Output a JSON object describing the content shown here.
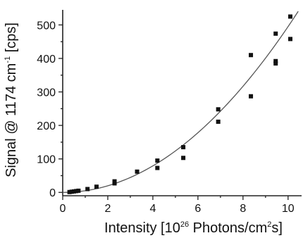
{
  "chart_data": {
    "type": "scatter",
    "title": "",
    "xlabel": {
      "prefix": "Intensity [10",
      "sup1": "26",
      "middle": " Photons/cm",
      "sup2": "2",
      "suffix": "s]"
    },
    "ylabel": {
      "prefix": "Signal @ 1174 cm",
      "sup": "-1",
      "suffix": " [cps]"
    },
    "xlim": [
      0,
      10.6
    ],
    "ylim": [
      -10,
      545
    ],
    "xticks": [
      0,
      2,
      4,
      6,
      8,
      10
    ],
    "yticks": [
      0,
      100,
      200,
      300,
      400,
      500
    ],
    "grid": false,
    "legend": "none",
    "series": [
      {
        "points": [
          [
            0.3,
            1
          ],
          [
            0.4,
            2
          ],
          [
            0.5,
            3
          ],
          [
            0.6,
            4
          ],
          [
            0.7,
            5
          ],
          [
            1.1,
            10
          ],
          [
            1.5,
            17
          ],
          [
            2.3,
            27
          ],
          [
            2.3,
            33
          ],
          [
            3.3,
            62
          ],
          [
            4.2,
            73
          ],
          [
            4.2,
            95
          ],
          [
            5.35,
            103
          ],
          [
            5.35,
            135
          ],
          [
            6.9,
            211
          ],
          [
            6.9,
            248
          ],
          [
            8.35,
            287
          ],
          [
            8.35,
            410
          ],
          [
            9.45,
            385
          ],
          [
            9.45,
            392
          ],
          [
            9.45,
            474
          ],
          [
            10.1,
            458
          ],
          [
            10.1,
            525
          ]
        ]
      }
    ],
    "fit_curve": {
      "type": "power",
      "coefficient": 4.95,
      "exponent": 2.0,
      "x_range": [
        0,
        10.45
      ]
    }
  }
}
